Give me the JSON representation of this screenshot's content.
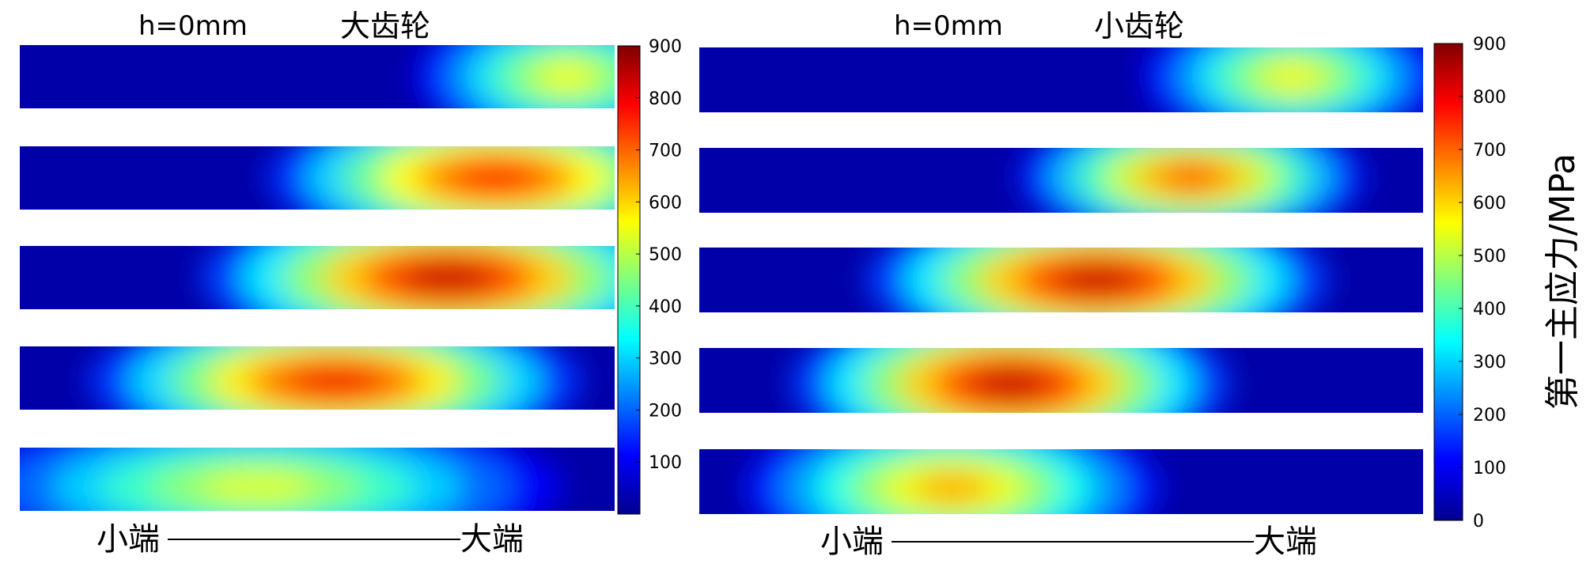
{
  "chart_data": [
    {
      "type": "heatmap",
      "title": "大齿轮",
      "position_label": "h=0mm",
      "xaxis_left_label": "小端",
      "xaxis_right_label": "大端",
      "colorbar_ticks": [
        100,
        200,
        300,
        400,
        500,
        600,
        700,
        800,
        900
      ],
      "clim": [
        0,
        900
      ],
      "strips": [
        {
          "hotspots": [
            {
              "x": 0.92,
              "y": 0.5,
              "rx": 0.16,
              "ry": 0.7,
              "value": 560
            }
          ]
        },
        {
          "hotspots": [
            {
              "x": 0.8,
              "y": 0.5,
              "rx": 0.24,
              "ry": 0.75,
              "value": 780
            }
          ]
        },
        {
          "hotspots": [
            {
              "x": 0.72,
              "y": 0.5,
              "rx": 0.26,
              "ry": 0.8,
              "value": 840
            }
          ]
        },
        {
          "hotspots": [
            {
              "x": 0.53,
              "y": 0.55,
              "rx": 0.26,
              "ry": 0.75,
              "value": 800
            }
          ]
        },
        {
          "hotspots": [
            {
              "x": 0.4,
              "y": 0.62,
              "rx": 0.32,
              "ry": 0.75,
              "value": 540
            }
          ]
        }
      ]
    },
    {
      "type": "heatmap",
      "title": "小齿轮",
      "position_label": "h=0mm",
      "xaxis_left_label": "小端",
      "xaxis_right_label": "大端",
      "colorbar_ticks": [
        0,
        100,
        200,
        300,
        400,
        500,
        600,
        700,
        800,
        900
      ],
      "colorbar_label": "第一主应力/MPa",
      "clim": [
        0,
        900
      ],
      "strips": [
        {
          "hotspots": [
            {
              "x": 0.82,
              "y": 0.45,
              "rx": 0.13,
              "ry": 0.65,
              "value": 570
            }
          ]
        },
        {
          "hotspots": [
            {
              "x": 0.68,
              "y": 0.45,
              "rx": 0.15,
              "ry": 0.65,
              "value": 720
            }
          ]
        },
        {
          "hotspots": [
            {
              "x": 0.55,
              "y": 0.5,
              "rx": 0.2,
              "ry": 0.75,
              "value": 840
            }
          ]
        },
        {
          "hotspots": [
            {
              "x": 0.43,
              "y": 0.55,
              "rx": 0.19,
              "ry": 0.8,
              "value": 840
            }
          ]
        },
        {
          "hotspots": [
            {
              "x": 0.35,
              "y": 0.6,
              "rx": 0.18,
              "ry": 0.75,
              "value": 640
            }
          ]
        }
      ]
    }
  ]
}
